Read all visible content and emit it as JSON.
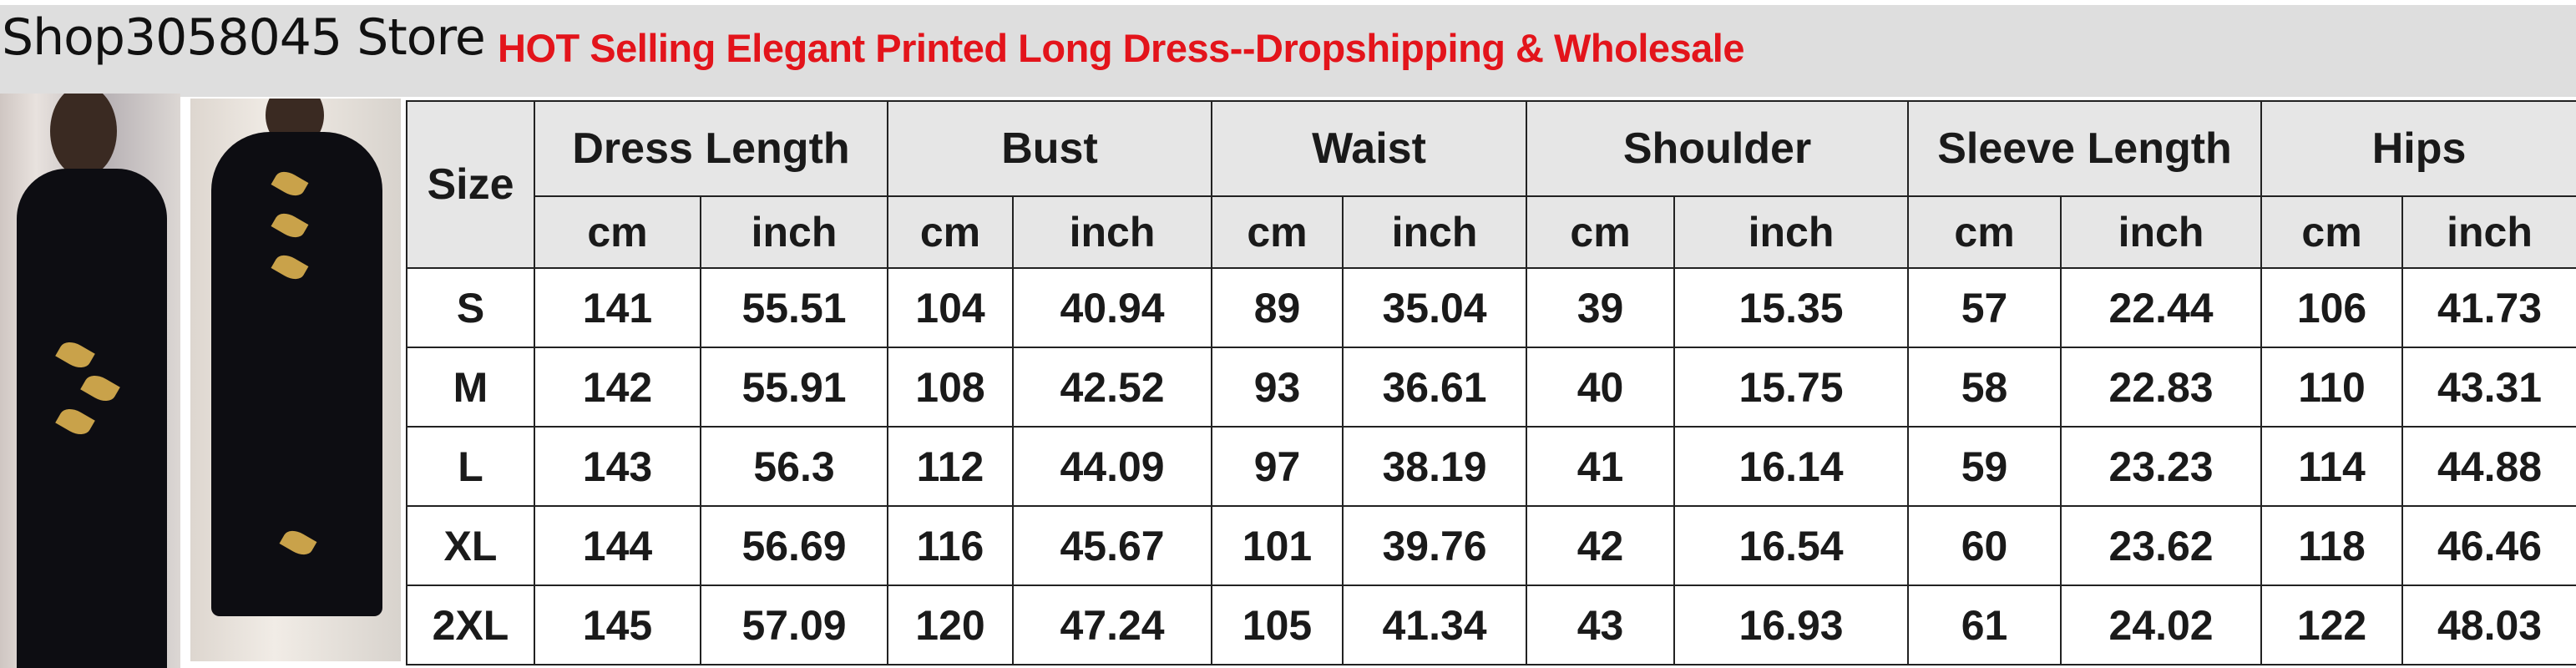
{
  "header": {
    "store_name": "Shop3058045 Store",
    "title": "HOT Selling Elegant Printed Long Dress--Dropshipping & Wholesale",
    "title_color": "#e3141b"
  },
  "photos": [
    {
      "name": "product-photo-front",
      "icon": "dress-photo"
    },
    {
      "name": "product-photo-full",
      "icon": "dress-photo"
    }
  ],
  "size_table": {
    "size_label": "Size",
    "columns": [
      "Dress Length",
      "Bust",
      "Waist",
      "Shoulder",
      "Sleeve Length",
      "Hips"
    ],
    "units": [
      "cm",
      "inch"
    ],
    "rows": [
      {
        "size": "S",
        "values": [
          "141",
          "55.51",
          "104",
          "40.94",
          "89",
          "35.04",
          "39",
          "15.35",
          "57",
          "22.44",
          "106",
          "41.73"
        ]
      },
      {
        "size": "M",
        "values": [
          "142",
          "55.91",
          "108",
          "42.52",
          "93",
          "36.61",
          "40",
          "15.75",
          "58",
          "22.83",
          "110",
          "43.31"
        ]
      },
      {
        "size": "L",
        "values": [
          "143",
          "56.3",
          "112",
          "44.09",
          "97",
          "38.19",
          "41",
          "16.14",
          "59",
          "23.23",
          "114",
          "44.88"
        ]
      },
      {
        "size": "XL",
        "values": [
          "144",
          "56.69",
          "116",
          "45.67",
          "101",
          "39.76",
          "42",
          "16.54",
          "60",
          "23.62",
          "118",
          "46.46"
        ]
      },
      {
        "size": "2XL",
        "values": [
          "145",
          "57.09",
          "120",
          "47.24",
          "105",
          "41.34",
          "43",
          "16.93",
          "61",
          "24.02",
          "122",
          "48.03"
        ]
      }
    ]
  }
}
